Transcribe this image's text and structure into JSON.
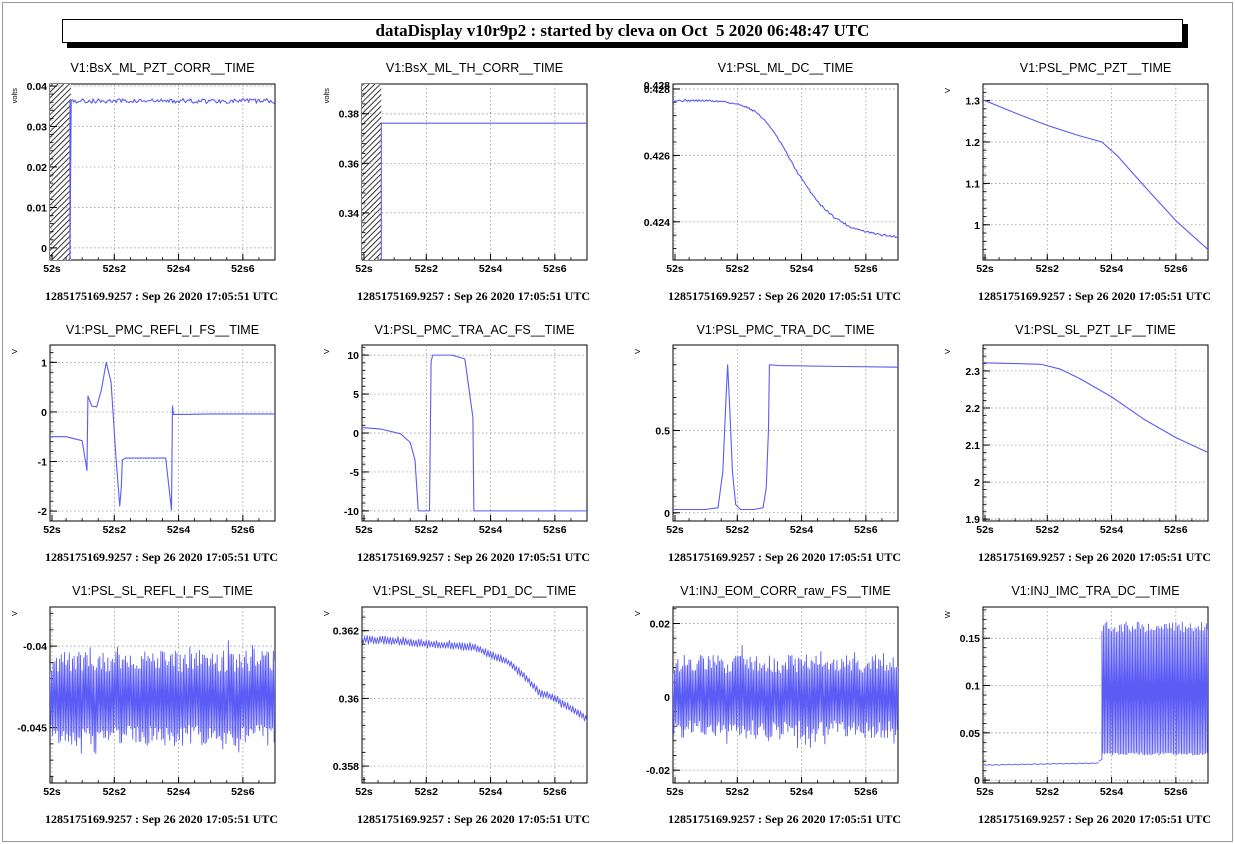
{
  "header": {
    "title": "dataDisplay v10r9p2 : started by cleva on Oct  5 2020 06:48:47 UTC"
  },
  "colors": {
    "trace": "#5b5bf5",
    "grid": "#8c8c8c",
    "hatch": "#000000"
  },
  "chart_data": [
    {
      "type": "line",
      "title": "V1:BsX_ML_PZT_CORR__TIME",
      "ylabel": "volts",
      "xticks": [
        "52s",
        "52s2",
        "52s4",
        "52s6"
      ],
      "xlim": [
        52.0,
        52.7
      ],
      "yticks": [
        0,
        0.01,
        0.02,
        0.03,
        0.04
      ],
      "ytick_labels": [
        "0",
        "0.01",
        "0.02",
        "0.03",
        "0.04"
      ],
      "ylim": [
        -0.003,
        0.0405
      ],
      "grid": true,
      "hatched_until": 52.065,
      "series": [
        {
          "x": [
            52.062,
            52.062,
            52.7
          ],
          "y": [
            -0.002,
            0.0363,
            0.0363
          ],
          "ripple": 0.0006,
          "ripple_from": 52.062
        }
      ],
      "footer": "1285175169.9257 : Sep 26 2020 17:05:51 UTC"
    },
    {
      "type": "line",
      "title": "V1:BsX_ML_TH_CORR__TIME",
      "ylabel": "volts",
      "xticks": [
        "52s",
        "52s2",
        "52s4",
        "52s6"
      ],
      "xlim": [
        52.0,
        52.7
      ],
      "yticks": [
        0.34,
        0.36,
        0.38
      ],
      "ytick_labels": [
        "0.34",
        "0.36",
        "0.38"
      ],
      "ylim": [
        0.321,
        0.392
      ],
      "grid": true,
      "hatched_until": 52.06,
      "series": [
        {
          "x": [
            52.06,
            52.06,
            52.7
          ],
          "y": [
            0.321,
            0.3762,
            0.3762
          ]
        }
      ],
      "footer": "1285175169.9257 : Sep 26 2020 17:05:51 UTC"
    },
    {
      "type": "line",
      "title": "V1:PSL_ML_DC__TIME",
      "ylabel": "",
      "xticks": [
        "52s",
        "52s2",
        "52s4",
        "52s6"
      ],
      "xlim": [
        52.0,
        52.7
      ],
      "yticks": [
        0.424,
        0.426,
        0.428
      ],
      "ytick_labels": [
        "0.424",
        "0.426",
        "0.428"
      ],
      "ylim": [
        0.42285,
        0.42815
      ],
      "grid": true,
      "top_label": "0.428",
      "series": [
        {
          "x": [
            52.0,
            52.1,
            52.16,
            52.22,
            52.26,
            52.3,
            52.34,
            52.38,
            52.42,
            52.46,
            52.5,
            52.55,
            52.6,
            52.65,
            52.7
          ],
          "y": [
            0.42765,
            0.42765,
            0.42762,
            0.4275,
            0.4273,
            0.4269,
            0.4263,
            0.4256,
            0.425,
            0.4245,
            0.42415,
            0.42385,
            0.4237,
            0.4236,
            0.42355
          ],
          "ripple": 3e-05
        }
      ],
      "footer": "1285175169.9257 : Sep 26 2020 17:05:51 UTC"
    },
    {
      "type": "line",
      "title": "V1:PSL_PMC_PZT__TIME",
      "ylabel": "V",
      "xticks": [
        "52s",
        "52s2",
        "52s4",
        "52s6"
      ],
      "xlim": [
        52.0,
        52.7
      ],
      "yticks": [
        1,
        1.1,
        1.2,
        1.3
      ],
      "ytick_labels": [
        "1",
        "1.1",
        "1.2",
        "1.3"
      ],
      "ylim": [
        0.915,
        1.34
      ],
      "grid": true,
      "series": [
        {
          "x": [
            52.0,
            52.1,
            52.2,
            52.3,
            52.37,
            52.42,
            52.5,
            52.6,
            52.7
          ],
          "y": [
            1.302,
            1.27,
            1.24,
            1.215,
            1.2,
            1.165,
            1.095,
            1.01,
            0.94
          ]
        }
      ],
      "footer": "1285175169.9257 : Sep 26 2020 17:05:51 UTC"
    },
    {
      "type": "line",
      "title": "V1:PSL_PMC_REFL_I_FS__TIME",
      "ylabel": "V",
      "xticks": [
        "52s",
        "52s2",
        "52s4",
        "52s6"
      ],
      "xlim": [
        52.0,
        52.7
      ],
      "yticks": [
        -2,
        -1,
        0,
        1
      ],
      "ytick_labels": [
        "-2",
        "-1",
        "0",
        "1"
      ],
      "ylim": [
        -2.2,
        1.35
      ],
      "grid": true,
      "series": [
        {
          "x": [
            52.0,
            52.05,
            52.1,
            52.115,
            52.118,
            52.13,
            52.145,
            52.16,
            52.175,
            52.19,
            52.205,
            52.217,
            52.222,
            52.225,
            52.235,
            52.26,
            52.3,
            52.36,
            52.378,
            52.381,
            52.384,
            52.42,
            52.5,
            52.6,
            52.7
          ],
          "y": [
            -0.5,
            -0.5,
            -0.58,
            -1.18,
            0.32,
            0.12,
            0.1,
            0.45,
            1.0,
            0.6,
            -0.9,
            -1.9,
            -1.5,
            -0.97,
            -0.93,
            -0.93,
            -0.93,
            -0.93,
            -1.98,
            0.12,
            -0.05,
            -0.05,
            -0.04,
            -0.04,
            -0.04
          ]
        }
      ],
      "footer": "1285175169.9257 : Sep 26 2020 17:05:51 UTC"
    },
    {
      "type": "line",
      "title": "V1:PSL_PMC_TRA_AC_FS__TIME",
      "ylabel": "V",
      "xticks": [
        "52s",
        "52s2",
        "52s4",
        "52s6"
      ],
      "xlim": [
        52.0,
        52.7
      ],
      "yticks": [
        -10,
        -5,
        0,
        5,
        10
      ],
      "ytick_labels": [
        "-10",
        "-5",
        "0",
        "5",
        "10"
      ],
      "ylim": [
        -11.3,
        11.3
      ],
      "grid": true,
      "series": [
        {
          "x": [
            52.0,
            52.06,
            52.12,
            52.15,
            52.165,
            52.175,
            52.2,
            52.21,
            52.215,
            52.22,
            52.23,
            52.28,
            52.32,
            52.33,
            52.345,
            52.348,
            52.4,
            52.5,
            52.7
          ],
          "y": [
            0.7,
            0.5,
            -0.1,
            -1.2,
            -3.5,
            -10.0,
            -10.0,
            -10.0,
            9.2,
            10.0,
            10.0,
            10.0,
            9.5,
            6.5,
            2.0,
            -10.0,
            -10.0,
            -10.0,
            -10.0
          ]
        }
      ],
      "footer": "1285175169.9257 : Sep 26 2020 17:05:51 UTC"
    },
    {
      "type": "line",
      "title": "V1:PSL_PMC_TRA_DC__TIME",
      "ylabel": "V",
      "xticks": [
        "52s",
        "52s2",
        "52s4",
        "52s6"
      ],
      "xlim": [
        52.0,
        52.7
      ],
      "yticks": [
        0,
        0.5
      ],
      "ytick_labels": [
        "0",
        "0.5"
      ],
      "ylim": [
        -0.05,
        1.02
      ],
      "grid": true,
      "series": [
        {
          "x": [
            52.0,
            52.1,
            52.14,
            52.155,
            52.165,
            52.17,
            52.175,
            52.185,
            52.195,
            52.21,
            52.25,
            52.28,
            52.29,
            52.297,
            52.3,
            52.33,
            52.5,
            52.7
          ],
          "y": [
            0.02,
            0.02,
            0.03,
            0.25,
            0.7,
            0.9,
            0.7,
            0.25,
            0.05,
            0.02,
            0.02,
            0.03,
            0.15,
            0.5,
            0.9,
            0.895,
            0.89,
            0.885
          ]
        }
      ],
      "footer": "1285175169.9257 : Sep 26 2020 17:05:51 UTC"
    },
    {
      "type": "line",
      "title": "V1:PSL_SL_PZT_LF__TIME",
      "ylabel": "V",
      "xticks": [
        "52s",
        "52s2",
        "52s4",
        "52s6"
      ],
      "xlim": [
        52.0,
        52.7
      ],
      "yticks": [
        1.9,
        2,
        2.1,
        2.2,
        2.3
      ],
      "ytick_labels": [
        "1.9",
        "2",
        "2.1",
        "2.2",
        "2.3"
      ],
      "ylim": [
        1.895,
        2.37
      ],
      "grid": true,
      "series": [
        {
          "x": [
            52.0,
            52.1,
            52.18,
            52.24,
            52.3,
            52.4,
            52.5,
            52.6,
            52.7
          ],
          "y": [
            2.322,
            2.32,
            2.318,
            2.305,
            2.28,
            2.23,
            2.17,
            2.12,
            2.08
          ]
        }
      ],
      "footer": "1285175169.9257 : Sep 26 2020 17:05:51 UTC"
    },
    {
      "type": "line",
      "title": "V1:PSL_SL_REFL_I_FS__TIME",
      "ylabel": "V",
      "xticks": [
        "52s",
        "52s2",
        "52s4",
        "52s6"
      ],
      "xlim": [
        52.0,
        52.7
      ],
      "yticks": [
        -0.045,
        -0.04
      ],
      "ytick_labels": [
        "-0.045",
        "-0.04"
      ],
      "ylim": [
        -0.0484,
        -0.0376
      ],
      "grid": true,
      "series": [
        {
          "x": [
            52.0,
            52.7
          ],
          "y": [
            -0.0432,
            -0.0432
          ],
          "noise": 0.0029,
          "noise_step": 0.0025
        }
      ],
      "footer": "1285175169.9257 : Sep 26 2020 17:05:51 UTC"
    },
    {
      "type": "line",
      "title": "V1:PSL_SL_REFL_PD1_DC__TIME",
      "ylabel": "V",
      "xticks": [
        "52s",
        "52s2",
        "52s4",
        "52s6"
      ],
      "xlim": [
        52.0,
        52.7
      ],
      "yticks": [
        0.358,
        0.36,
        0.362
      ],
      "ytick_labels": [
        "0.358",
        "0.36",
        "0.362"
      ],
      "ylim": [
        0.3575,
        0.3627
      ],
      "grid": true,
      "series": [
        {
          "x": [
            52.0,
            52.1,
            52.2,
            52.3,
            52.35,
            52.4,
            52.45,
            52.5,
            52.55,
            52.6,
            52.65,
            52.7
          ],
          "y": [
            0.36175,
            0.3617,
            0.3616,
            0.36155,
            0.3615,
            0.3613,
            0.3611,
            0.3607,
            0.3602,
            0.36,
            0.3597,
            0.3594
          ],
          "noise": 0.00012,
          "noise_step": 0.004
        }
      ],
      "footer": "1285175169.9257 : Sep 26 2020 17:05:51 UTC"
    },
    {
      "type": "line",
      "title": "V1:INJ_EOM_CORR_raw_FS__TIME",
      "ylabel": "V",
      "xticks": [
        "52s",
        "52s2",
        "52s4",
        "52s6"
      ],
      "xlim": [
        52.0,
        52.7
      ],
      "yticks": [
        -0.02,
        0,
        0.02
      ],
      "ytick_labels": [
        "-0.02",
        "0",
        "0.02"
      ],
      "ylim": [
        -0.0235,
        0.0245
      ],
      "grid": true,
      "series": [
        {
          "x": [
            52.0,
            52.7
          ],
          "y": [
            0.0,
            0.0
          ],
          "noise": 0.0115,
          "noise_step": 0.0025
        }
      ],
      "footer": "1285175169.9257 : Sep 26 2020 17:05:51 UTC"
    },
    {
      "type": "line",
      "title": "V1:INJ_IMC_TRA_DC__TIME",
      "ylabel": "W",
      "xticks": [
        "52s",
        "52s2",
        "52s4",
        "52s6"
      ],
      "xlim": [
        52.0,
        52.7
      ],
      "yticks": [
        0,
        0.05,
        0.1,
        0.15
      ],
      "ytick_labels": [
        "0",
        "0.05",
        "0.1",
        "0.15"
      ],
      "ylim": [
        -0.003,
        0.183
      ],
      "grid": true,
      "series": [
        {
          "x": [
            52.0,
            52.36
          ],
          "y": [
            0.016,
            0.018
          ],
          "noise": 0.0005,
          "noise_step": 0.01
        },
        {
          "x": [
            52.36,
            52.37,
            52.7
          ],
          "y": [
            0.02,
            0.022,
            0.022
          ],
          "band": [
            0.028,
            0.168
          ],
          "band_step": 0.0025
        }
      ],
      "footer": "1285175169.9257 : Sep 26 2020 17:05:51 UTC"
    }
  ]
}
